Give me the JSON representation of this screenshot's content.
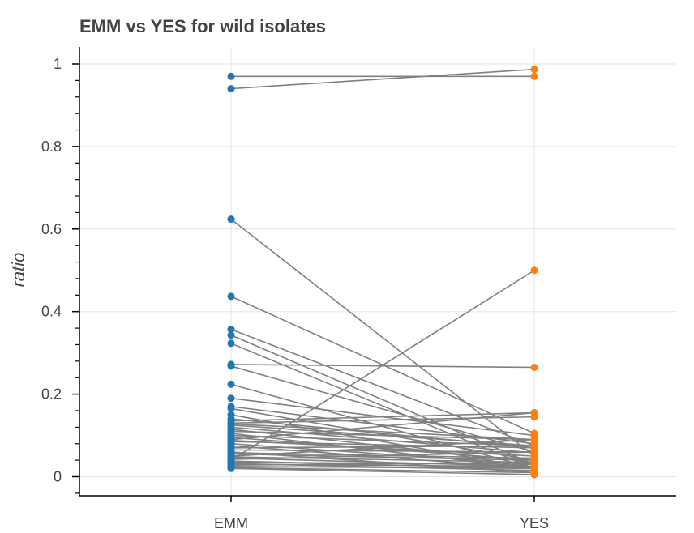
{
  "chart_data": {
    "type": "line",
    "title": "EMM vs YES for wild isolates",
    "ylabel": "ratio",
    "xlabel": "",
    "categories": [
      "EMM",
      "YES"
    ],
    "ylim": [
      -0.045,
      1.03
    ],
    "yticks": [
      0,
      0.2,
      0.4,
      0.6,
      0.8,
      1
    ],
    "ytick_labels": [
      "0",
      "0.2",
      "0.4",
      "0.6",
      "0.8",
      "1"
    ],
    "grid": true,
    "colors": {
      "EMM": "#1f77b4",
      "YES": "#ff7f0e",
      "line": "#808080",
      "grid": "#e5e5e5",
      "axis": "#000000"
    },
    "pairs": [
      [
        0.97,
        0.97
      ],
      [
        0.94,
        0.987
      ],
      [
        0.624,
        0.05
      ],
      [
        0.437,
        0.105
      ],
      [
        0.357,
        0.075
      ],
      [
        0.343,
        0.03
      ],
      [
        0.323,
        0.02
      ],
      [
        0.272,
        0.265
      ],
      [
        0.268,
        0.06
      ],
      [
        0.224,
        0.02
      ],
      [
        0.19,
        0.1
      ],
      [
        0.17,
        0.08
      ],
      [
        0.165,
        0.04
      ],
      [
        0.15,
        0.02
      ],
      [
        0.14,
        0.07
      ],
      [
        0.135,
        0.155
      ],
      [
        0.13,
        0.145
      ],
      [
        0.128,
        0.09
      ],
      [
        0.125,
        0.075
      ],
      [
        0.12,
        0.058
      ],
      [
        0.115,
        0.035
      ],
      [
        0.11,
        0.09
      ],
      [
        0.105,
        0.02
      ],
      [
        0.1,
        0.075
      ],
      [
        0.095,
        0.04
      ],
      [
        0.09,
        0.155
      ],
      [
        0.088,
        0.05
      ],
      [
        0.085,
        0.07
      ],
      [
        0.08,
        0.03
      ],
      [
        0.075,
        0.02
      ],
      [
        0.07,
        0.075
      ],
      [
        0.065,
        0.06
      ],
      [
        0.06,
        0.01
      ],
      [
        0.058,
        0.045
      ],
      [
        0.055,
        0.04
      ],
      [
        0.05,
        0.09
      ],
      [
        0.048,
        0.035
      ],
      [
        0.045,
        0.025
      ],
      [
        0.042,
        0.06
      ],
      [
        0.04,
        0.5
      ],
      [
        0.038,
        0.02
      ],
      [
        0.035,
        0.03
      ],
      [
        0.032,
        0.015
      ],
      [
        0.03,
        0.025
      ],
      [
        0.028,
        0.035
      ],
      [
        0.025,
        0.02
      ],
      [
        0.022,
        0.01
      ],
      [
        0.02,
        0.005
      ]
    ]
  }
}
